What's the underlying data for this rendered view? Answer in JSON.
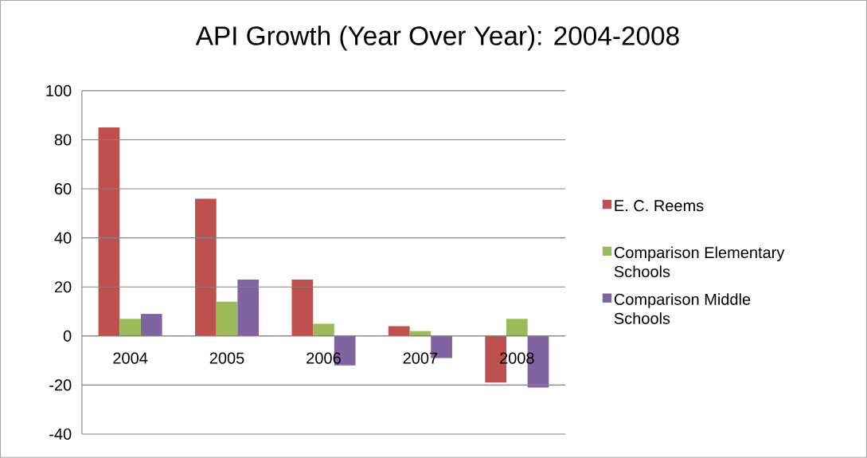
{
  "chart_data": {
    "type": "bar",
    "title": "API Growth (Year Over Year): 2004-2008",
    "categories": [
      "2004",
      "2005",
      "2006",
      "2007",
      "2008"
    ],
    "series": [
      {
        "name": "E. C. Reems",
        "color": "#c0504d",
        "values": [
          85,
          56,
          23,
          4,
          -19
        ]
      },
      {
        "name": "Comparison Elementary Schools",
        "color": "#9bbb59",
        "values": [
          7,
          14,
          5,
          2,
          7
        ]
      },
      {
        "name": "Comparison Middle Schools",
        "color": "#8064a2",
        "values": [
          9,
          23,
          -12,
          -9,
          -21
        ]
      }
    ],
    "ylim": [
      -40,
      100
    ],
    "yticks": [
      -40,
      -20,
      0,
      20,
      40,
      60,
      80,
      100
    ],
    "grid": "y",
    "legend": "right"
  }
}
